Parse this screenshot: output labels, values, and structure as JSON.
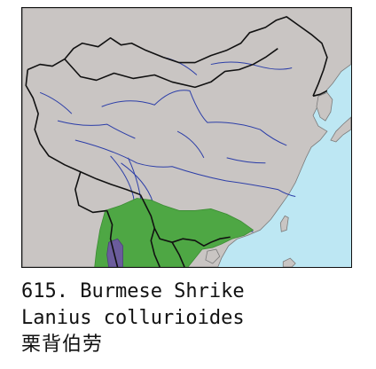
{
  "caption": {
    "number_line": "615. Burmese Shrike",
    "scientific_name": "Lanius collurioides",
    "chinese_name": "栗背伯劳"
  },
  "colors": {
    "sea": "#bde7f3",
    "land": "#c9c5c3",
    "range_resident": "#4ea744",
    "range_winter": "#6b5c9c",
    "rivers": "#2c3ea8",
    "borders": "#111111"
  },
  "legend_hint": {
    "resident_range": "green",
    "non_breeding_range": "purple"
  }
}
